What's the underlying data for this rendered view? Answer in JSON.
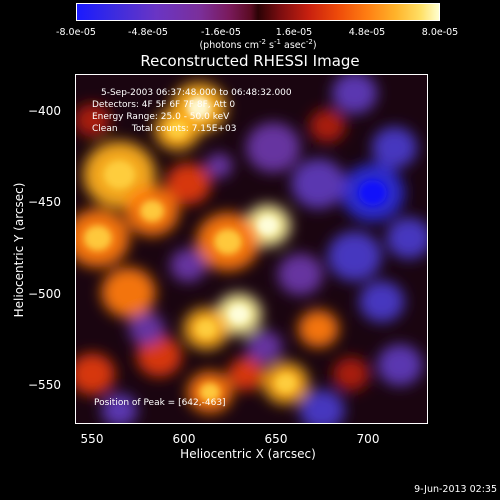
{
  "colorbar": {
    "ticks": [
      "-8.0e-05",
      "-4.8e-05",
      "-1.6e-05",
      "1.6e-05",
      "4.8e-05",
      "8.0e-05"
    ],
    "units_main": "(photons cm",
    "units_sup1": "-2",
    "units_mid": " s",
    "units_sup2": "-1",
    "units_end": " asec",
    "units_sup3": "-2",
    "units_close": ")",
    "range": [
      -8e-05,
      8e-05
    ]
  },
  "title": "Reconstructed RHESSI Image",
  "annotations": {
    "time_range": "5-Sep-2003 06:37:48.000 to 06:48:32.000",
    "detectors": "Detectors: 4F 5F 6F 7F 8F, Att 0",
    "energy": "Energy Range: 25.0 - 50.0 keV",
    "clean": "Clean     Total counts: 7.15E+03",
    "peak": "Position of Peak = [642,-463]"
  },
  "footer": {
    "date": "9-Jun-2013 02:35"
  },
  "chart_data": {
    "type": "heatmap",
    "title": "Reconstructed RHESSI Image",
    "xlabel": "Heliocentric X (arcsec)",
    "ylabel": "Heliocentric Y (arcsec)",
    "xlim": [
      536,
      730
    ],
    "ylim": [
      -572,
      -380
    ],
    "xticks": [
      550,
      600,
      650,
      700
    ],
    "yticks": [
      -400,
      -450,
      -500,
      -550
    ],
    "x_tick_labels": [
      "550",
      "600",
      "650",
      "700"
    ],
    "y_tick_labels": [
      "−400",
      "−450",
      "−500",
      "−550"
    ],
    "colorbar_range": [
      -8e-05,
      8e-05
    ],
    "peak_position": [
      642,
      -463
    ],
    "blobs": [
      {
        "x": 642,
        "y": -463,
        "r": 10,
        "v": 1.0
      },
      {
        "x": 604,
        "y": -398,
        "r": 12,
        "v": 0.85
      },
      {
        "x": 592,
        "y": -410,
        "r": 10,
        "v": 0.7
      },
      {
        "x": 620,
        "y": -472,
        "r": 14,
        "v": 0.65
      },
      {
        "x": 626,
        "y": -512,
        "r": 10,
        "v": 0.9
      },
      {
        "x": 608,
        "y": -520,
        "r": 10,
        "v": 0.7
      },
      {
        "x": 560,
        "y": -435,
        "r": 16,
        "v": 0.7
      },
      {
        "x": 548,
        "y": -470,
        "r": 14,
        "v": 0.6
      },
      {
        "x": 565,
        "y": -500,
        "r": 12,
        "v": 0.55
      },
      {
        "x": 578,
        "y": -455,
        "r": 12,
        "v": 0.6
      },
      {
        "x": 598,
        "y": -440,
        "r": 10,
        "v": 0.5
      },
      {
        "x": 582,
        "y": -535,
        "r": 10,
        "v": 0.5
      },
      {
        "x": 610,
        "y": -555,
        "r": 10,
        "v": 0.6
      },
      {
        "x": 652,
        "y": -550,
        "r": 10,
        "v": 0.75
      },
      {
        "x": 670,
        "y": -520,
        "r": 9,
        "v": 0.55
      },
      {
        "x": 630,
        "y": -545,
        "r": 8,
        "v": 0.45
      },
      {
        "x": 545,
        "y": -545,
        "r": 10,
        "v": 0.5
      },
      {
        "x": 688,
        "y": -545,
        "r": 8,
        "v": 0.4
      },
      {
        "x": 675,
        "y": -408,
        "r": 8,
        "v": 0.35
      },
      {
        "x": 545,
        "y": -405,
        "r": 8,
        "v": 0.4
      },
      {
        "x": 700,
        "y": -445,
        "r": 14,
        "v": -0.75
      },
      {
        "x": 712,
        "y": -420,
        "r": 10,
        "v": -0.55
      },
      {
        "x": 690,
        "y": -480,
        "r": 12,
        "v": -0.55
      },
      {
        "x": 705,
        "y": -505,
        "r": 10,
        "v": -0.5
      },
      {
        "x": 670,
        "y": -440,
        "r": 12,
        "v": -0.45
      },
      {
        "x": 645,
        "y": -420,
        "r": 12,
        "v": -0.35
      },
      {
        "x": 660,
        "y": -490,
        "r": 10,
        "v": -0.35
      },
      {
        "x": 720,
        "y": -470,
        "r": 10,
        "v": -0.5
      },
      {
        "x": 690,
        "y": -390,
        "r": 10,
        "v": -0.45
      },
      {
        "x": 598,
        "y": -485,
        "r": 8,
        "v": -0.3
      },
      {
        "x": 575,
        "y": -520,
        "r": 8,
        "v": -0.3
      },
      {
        "x": 640,
        "y": -530,
        "r": 8,
        "v": -0.3
      },
      {
        "x": 715,
        "y": -540,
        "r": 10,
        "v": -0.45
      },
      {
        "x": 672,
        "y": -565,
        "r": 10,
        "v": -0.55
      },
      {
        "x": 560,
        "y": -565,
        "r": 8,
        "v": -0.45
      },
      {
        "x": 615,
        "y": -430,
        "r": 6,
        "v": -0.3
      }
    ]
  }
}
